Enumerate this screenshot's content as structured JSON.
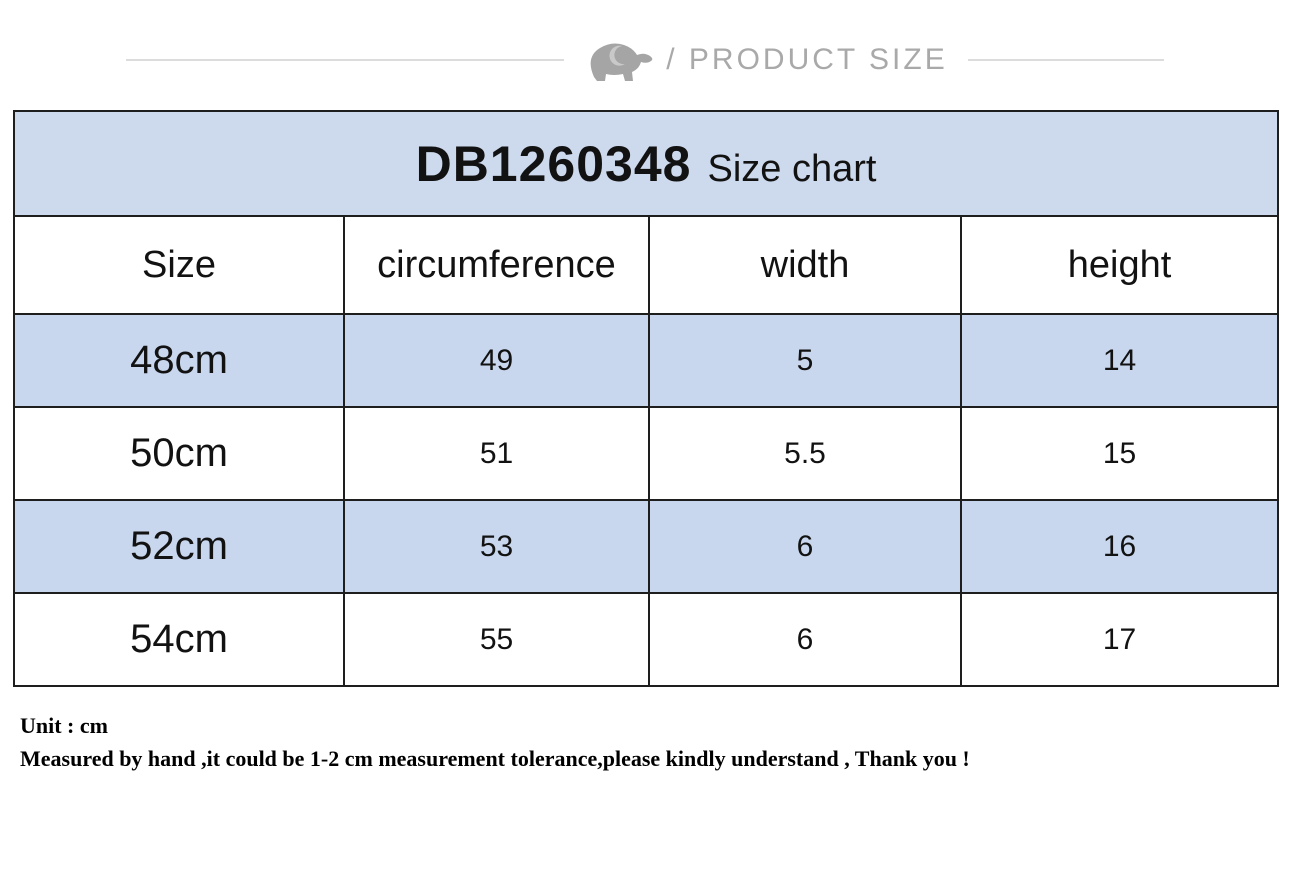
{
  "banner": {
    "label": "/ PRODUCT SIZE",
    "icon": "elephant-icon",
    "text_color": "#a9a9a9",
    "line_color": "#dcdcdc"
  },
  "table": {
    "title_bold": "DB1260348",
    "title_regular": "Size chart",
    "colors": {
      "title_band": "#cdd9ec",
      "row_blue": "#c8d7ee",
      "row_white": "#ffffff",
      "border": "#1e1e1e"
    }
  },
  "chart_data": {
    "type": "table",
    "title": "DB1260348 Size chart",
    "columns": [
      "Size",
      "circumference",
      "width",
      "height"
    ],
    "rows": [
      [
        "48cm",
        "49",
        "5",
        "14"
      ],
      [
        "50cm",
        "51",
        "5.5",
        "15"
      ],
      [
        "52cm",
        "53",
        "6",
        "16"
      ],
      [
        "54cm",
        "55",
        "6",
        "17"
      ]
    ],
    "unit": "cm"
  },
  "notes": {
    "line1": "Unit : cm",
    "line2": "Measured by hand ,it could be 1-2 cm measurement tolerance,please kindly understand , Thank you !"
  }
}
